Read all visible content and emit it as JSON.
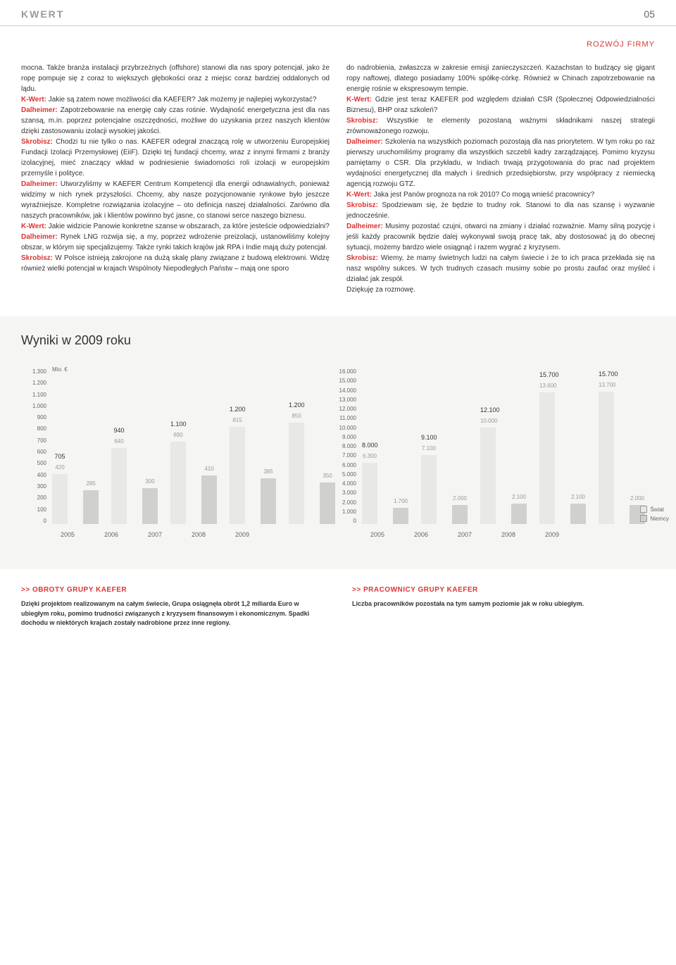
{
  "header": {
    "logo": "KWERT",
    "page_number": "05"
  },
  "section_label": "ROZWÓJ FIRMY",
  "article": {
    "left_col": "mocna. Także branża instalacji przybrzeżnych (offshore) stanowi dla nas spory potencjał, jako że ropę pompuje się z coraz to większych głębokości oraz z miejsc coraz bardziej oddalonych od lądu.\n<K-Wert:> Jakie są zatem nowe możliwości dla KAEFER? Jak możemy je najlepiej wykorzystać?\n<Dalheimer:> Zapotrzebowanie na energię cały czas rośnie. Wydajność energetyczna jest dla nas szansą, m.in. poprzez potencjalne oszczędności, możliwe do uzyskania przez naszych klientów dzięki zastosowaniu izolacji wysokiej jakości.\n<Skrobisz:> Chodzi tu nie tylko o nas. KAEFER odegrał znaczącą rolę w utworzeniu Europejskiej Fundacji Izolacji Przemysłowej (EiiF). Dzięki tej fundacji chcemy, wraz z innymi firmami z branży izolacyjnej, mieć znaczący wkład w podniesienie świadomości roli izolacji w europejskim przemyśle i polityce.\n<Dalheimer:> Utworzyliśmy w KAEFER Centrum Kompetencji dla energii odnawialnych, ponieważ widzimy w nich rynek przyszłości. Chcemy, aby nasze pozycjonowanie rynkowe było jeszcze wyraźniejsze. Kompletne rozwiązania izolacyjne – oto definicja naszej działalności. Zarówno dla naszych pracowników, jak i klientów powinno być jasne, co stanowi serce naszego biznesu.\n<K-Wert:> Jakie widzicie Panowie konkretne szanse w obszarach, za które jesteście odpowiedzialni?\n<Dalheimer:> Rynek LNG rozwija się, a my, poprzez wdrożenie preizolacji, ustanowiliśmy kolejny obszar, w którym się specjalizujemy. Także rynki takich krajów jak RPA i Indie mają duży potencjał.\n<Skrobisz:> W Polsce istnieją zakrojone na dużą skalę plany związane z budową elektrowni. Widzę również wielki potencjał w krajach Wspólnoty Niepodległych Państw – mają one sporo",
    "right_col": "do nadrobienia, zwłaszcza w zakresie emisji zanieczyszczeń. Kazachstan to budzący się gigant ropy naftowej, dlatego posiadamy 100% spółkę-córkę. Również w Chinach zapotrzebowanie na energię rośnie w ekspresowym tempie.\n<K-Wert:> Gdzie jest teraz KAEFER pod względem działań CSR (Społecznej Odpowiedzialności Biznesu), BHP oraz szkoleń?\n<Skrobisz:> Wszystkie te elementy pozostaną ważnymi składnikami naszej strategii zrównoważonego rozwoju.\n<Dalheimer:> Szkolenia na wszystkich poziomach pozostają dla nas priorytetem. W tym roku po raz pierwszy uruchomiliśmy programy dla wszystkich szczebli kadry zarządzającej. Pomimo kryzysu pamiętamy o CSR. Dla przykładu, w Indiach trwają przygotowania do prac nad projektem wydajności energetycznej dla małych i średnich przedsiębiorstw, przy współpracy z niemiecką agencją rozwoju GTZ.\n<K-Wert:> Jaka jest Panów prognoza na rok 2010? Co mogą wnieść pracownicy?\n<Skrobisz:> Spodziewam się, że będzie to trudny rok. Stanowi to dla nas szansę i wyzwanie jednocześnie.\n<Dalheimer:> Musimy pozostać czujni, otwarci na zmiany i działać rozważnie. Mamy silną pozycję i jeśli każdy pracownik będzie dalej wykonywał swoją pracę tak, aby dostosować ją do obecnej sytuacji, możemy bardzo wiele osiągnąć i razem wygrać z kryzysem.\n<Skrobisz:> Wiemy, że mamy świetnych ludzi na całym świecie i że to ich praca przekłada się na nasz wspólny sukces. W tych trudnych czasach musimy sobie po prostu zaufać oraz myśleć i działać jak zespół.\n\nDziękuję za rozmowę."
  },
  "chart_section_title": "Wyniki w 2009 roku",
  "chart1": {
    "unit": "Mio. €",
    "ymax": 1300,
    "ytick_step": 100,
    "years": [
      "2005",
      "2006",
      "2007",
      "2008",
      "2009"
    ],
    "totals": [
      "705",
      "940",
      "1.100",
      "1.200",
      "1.200"
    ],
    "top_vals": [
      420,
      640,
      690,
      815,
      850
    ],
    "top_labels": [
      "420",
      "640",
      "690",
      "815",
      "850"
    ],
    "bot_vals": [
      285,
      300,
      410,
      385,
      350
    ],
    "bot_labels": [
      "285",
      "300",
      "410",
      "385",
      "350"
    ],
    "bar_color_top": "#e8e8e6",
    "bar_color_bot": "#d0d0ce"
  },
  "chart2": {
    "ymax": 16000,
    "ytick_step": 1000,
    "years": [
      "2005",
      "2006",
      "2007",
      "2008",
      "2009"
    ],
    "totals": [
      "8.000",
      "9.100",
      "12.100",
      "15.700",
      "15.700"
    ],
    "top_vals": [
      6300,
      7100,
      10000,
      13600,
      13700
    ],
    "top_labels": [
      "6.300",
      "7.100",
      "10.000",
      "13.600",
      "13.700"
    ],
    "bot_vals": [
      1700,
      2000,
      2100,
      2100,
      2000
    ],
    "bot_labels": [
      "1.700",
      "2.000",
      "2.100",
      "2.100",
      "2.000"
    ]
  },
  "legend": {
    "items": [
      "Świat",
      "Niemcy"
    ]
  },
  "footers": [
    {
      "title": ">> OBROTY GRUPY KAEFER",
      "text": "Dzięki projektom realizowanym na całym świecie, Grupa osiągnęła obrót 1,2 miliarda Euro w ubiegłym roku, pomimo trudności związanych z kryzysem finansowym i ekonomicznym. Spadki dochodu w niektórych krajach zostały nadrobione przez inne regiony."
    },
    {
      "title": ">> PRACOWNICY GRUPY KAEFER",
      "text": "Liczba pracowników pozostała na tym samym poziomie jak w roku ubiegłym."
    }
  ]
}
